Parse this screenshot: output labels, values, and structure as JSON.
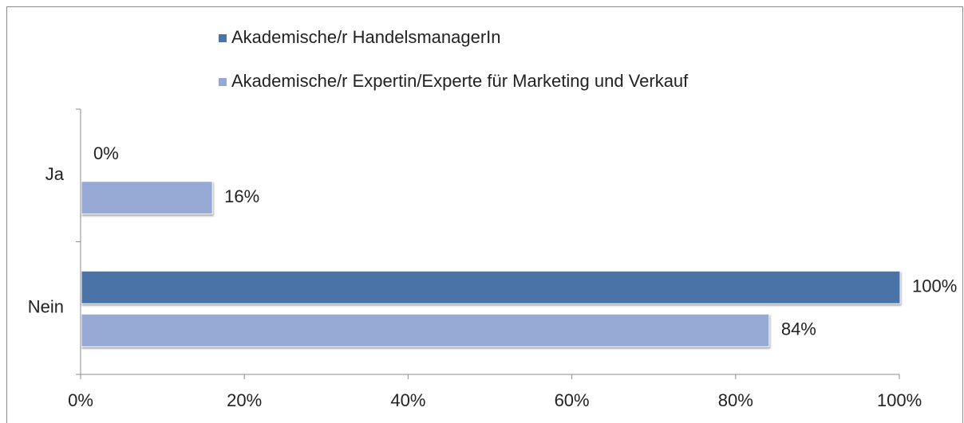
{
  "chart_data": {
    "type": "hbar",
    "categories": [
      "Ja",
      "Nein"
    ],
    "series": [
      {
        "name": "Akademische/r HandelsmanagerIn",
        "color": "#4a74a8",
        "values": [
          0,
          100
        ],
        "value_labels": [
          "0%",
          "100%"
        ]
      },
      {
        "name": "Akademische/r Expertin/Experte für Marketing und Verkauf",
        "color": "#95a9d4",
        "values": [
          16,
          84
        ],
        "value_labels": [
          "16%",
          "84%"
        ]
      }
    ],
    "xlim": [
      0,
      100
    ],
    "xticks": [
      {
        "value": 0,
        "label": "0%"
      },
      {
        "value": 20,
        "label": "20%"
      },
      {
        "value": 40,
        "label": "40%"
      },
      {
        "value": 60,
        "label": "60%"
      },
      {
        "value": 80,
        "label": "80%"
      },
      {
        "value": 100,
        "label": "100%"
      }
    ],
    "legend": "top"
  }
}
